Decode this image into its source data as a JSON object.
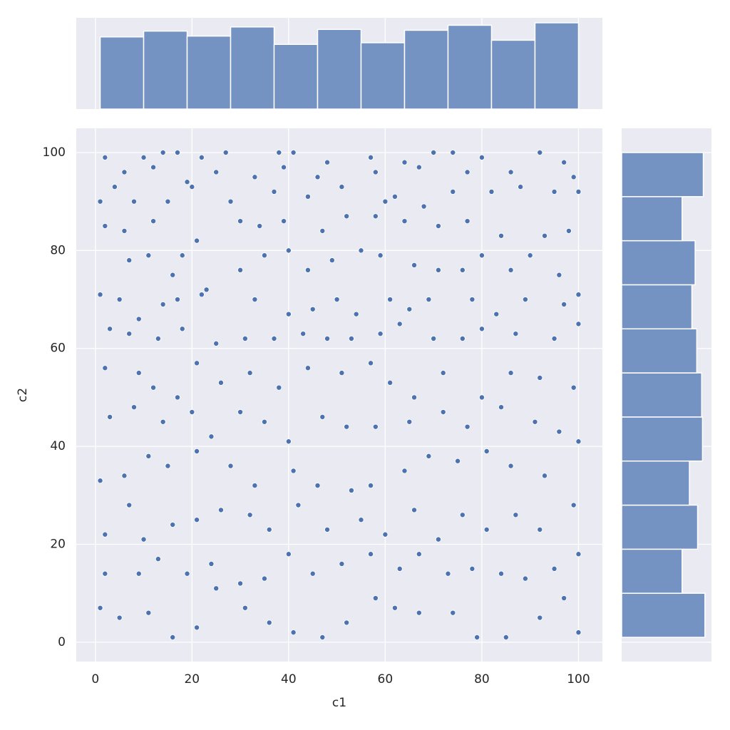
{
  "chart_data": [
    {
      "type": "scatter",
      "xlabel": "c1",
      "ylabel": "c2",
      "color": "#4c72b0",
      "grid": true,
      "xlim": [
        -3.95,
        104.95
      ],
      "ylim": [
        -3.95,
        104.95
      ],
      "xticks": [
        0,
        20,
        40,
        60,
        80,
        100
      ],
      "yticks": [
        0,
        20,
        40,
        60,
        80,
        100
      ],
      "x": [
        2,
        10,
        14,
        17,
        22,
        27,
        38,
        41,
        48,
        57,
        64,
        70,
        74,
        80,
        92,
        97,
        6,
        12,
        19,
        25,
        33,
        39,
        46,
        58,
        67,
        77,
        86,
        99,
        1,
        4,
        8,
        15,
        20,
        28,
        37,
        44,
        51,
        60,
        62,
        68,
        74,
        82,
        88,
        95,
        100,
        2,
        6,
        12,
        21,
        30,
        34,
        39,
        47,
        52,
        58,
        64,
        71,
        77,
        84,
        93,
        98,
        7,
        11,
        16,
        18,
        23,
        30,
        35,
        40,
        44,
        49,
        55,
        59,
        66,
        71,
        76,
        80,
        86,
        90,
        96,
        1,
        5,
        9,
        14,
        17,
        22,
        33,
        40,
        45,
        50,
        54,
        61,
        65,
        69,
        78,
        83,
        89,
        97,
        100,
        3,
        7,
        13,
        18,
        25,
        31,
        37,
        43,
        48,
        53,
        59,
        63,
        70,
        76,
        80,
        87,
        95,
        100,
        2,
        9,
        12,
        17,
        21,
        26,
        32,
        38,
        44,
        51,
        57,
        61,
        66,
        72,
        80,
        86,
        92,
        99,
        3,
        8,
        14,
        20,
        24,
        30,
        35,
        40,
        47,
        52,
        58,
        65,
        72,
        77,
        84,
        91,
        96,
        1,
        6,
        11,
        15,
        21,
        28,
        33,
        41,
        46,
        53,
        57,
        64,
        69,
        75,
        81,
        86,
        93,
        100,
        2,
        7,
        10,
        16,
        21,
        26,
        32,
        36,
        42,
        48,
        55,
        60,
        66,
        71,
        76,
        81,
        87,
        92,
        99,
        2,
        9,
        13,
        19,
        24,
        30,
        35,
        40,
        45,
        51,
        57,
        63,
        67,
        73,
        78,
        84,
        89,
        95,
        100,
        1,
        5,
        11,
        16,
        21,
        25,
        31,
        36,
        41,
        47,
        52,
        58,
        62,
        67,
        74,
        79,
        85,
        92,
        97,
        100
      ],
      "y": [
        99,
        99,
        100,
        100,
        99,
        100,
        100,
        100,
        98,
        99,
        98,
        100,
        100,
        99,
        100,
        98,
        96,
        97,
        94,
        96,
        95,
        97,
        95,
        96,
        97,
        96,
        96,
        95,
        90,
        93,
        90,
        90,
        93,
        90,
        92,
        91,
        93,
        90,
        91,
        89,
        92,
        92,
        93,
        92,
        92,
        85,
        84,
        86,
        82,
        86,
        85,
        86,
        84,
        87,
        87,
        86,
        85,
        86,
        83,
        83,
        84,
        78,
        79,
        75,
        79,
        72,
        76,
        79,
        80,
        76,
        78,
        80,
        79,
        77,
        76,
        76,
        79,
        76,
        79,
        75,
        71,
        70,
        66,
        69,
        70,
        71,
        70,
        67,
        68,
        70,
        67,
        70,
        68,
        70,
        70,
        67,
        70,
        69,
        71,
        64,
        63,
        62,
        64,
        61,
        62,
        62,
        63,
        62,
        62,
        63,
        65,
        62,
        62,
        64,
        63,
        62,
        65,
        56,
        55,
        52,
        50,
        57,
        53,
        55,
        52,
        56,
        55,
        57,
        53,
        50,
        55,
        50,
        55,
        54,
        52,
        46,
        48,
        45,
        47,
        42,
        47,
        45,
        41,
        46,
        44,
        44,
        45,
        47,
        44,
        48,
        45,
        43,
        33,
        34,
        38,
        36,
        39,
        36,
        32,
        35,
        32,
        31,
        32,
        35,
        38,
        37,
        39,
        36,
        34,
        41,
        22,
        28,
        21,
        24,
        25,
        27,
        26,
        23,
        28,
        23,
        25,
        22,
        27,
        21,
        26,
        23,
        26,
        23,
        28,
        14,
        14,
        17,
        14,
        16,
        12,
        13,
        18,
        14,
        16,
        18,
        15,
        18,
        14,
        15,
        14,
        13,
        15,
        18,
        7,
        5,
        6,
        1,
        3,
        11,
        7,
        4,
        2,
        1,
        4,
        9,
        7,
        6,
        6,
        1,
        1,
        5,
        9,
        2
      ]
    },
    {
      "type": "histogram",
      "color": "#7492c2",
      "bins": [
        1,
        10,
        19,
        28,
        37,
        46,
        55,
        64,
        73,
        82,
        91,
        100
      ],
      "values": [
        87,
        94,
        88,
        99,
        78,
        96,
        80,
        95,
        101,
        83,
        104
      ],
      "ylim": [
        0,
        110
      ]
    },
    {
      "type": "histogram",
      "orientation": "horizontal",
      "color": "#7492c2",
      "bins": [
        1,
        10,
        19,
        28,
        37,
        46,
        55,
        64,
        73,
        82,
        91,
        100
      ],
      "values": [
        102,
        74,
        93,
        83,
        99,
        98,
        92,
        86,
        90,
        74,
        100
      ],
      "xlim": [
        0,
        110
      ]
    }
  ]
}
